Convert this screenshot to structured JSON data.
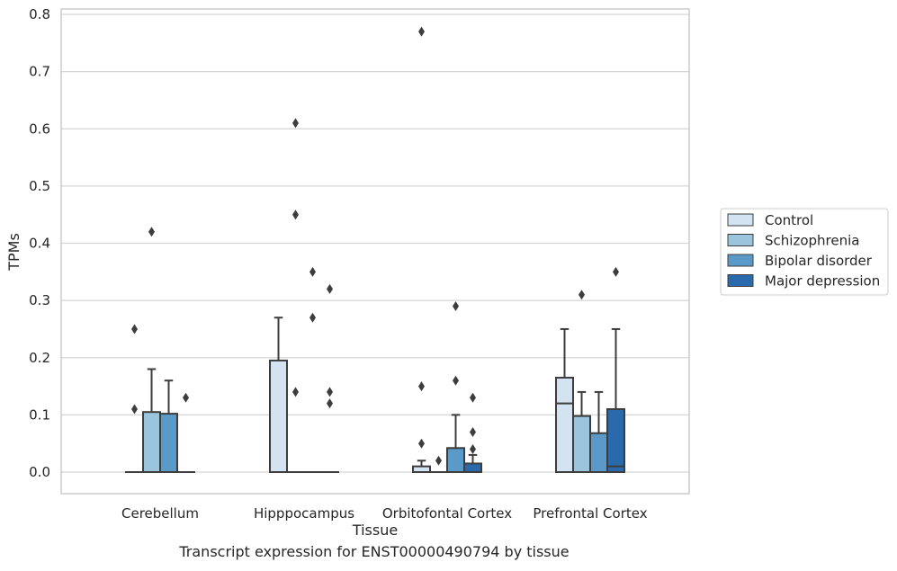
{
  "caption": "Transcript expression for ENST00000490794 by tissue",
  "chart_data": {
    "type": "box",
    "xlabel": "Tissue",
    "ylabel": "TPMs",
    "ylim": [
      -0.04,
      0.81
    ],
    "yticks": [
      "0.0",
      "0.1",
      "0.2",
      "0.3",
      "0.4",
      "0.5",
      "0.6",
      "0.7",
      "0.8"
    ],
    "grid": "horizontal",
    "legend_position": "right",
    "categories": [
      "Cerebellum",
      "Hipppocampus",
      "Orbitofontal Cortex",
      "Prefrontal Cortex"
    ],
    "series": [
      {
        "name": "Control",
        "color": "#d4e3f1",
        "boxes": [
          {
            "q1": 0,
            "median": 0,
            "q3": 0,
            "whisker_low": 0,
            "whisker_high": 0,
            "outliers": [
              0.11,
              0.25
            ]
          },
          {
            "q1": 0,
            "median": 0,
            "q3": 0.195,
            "whisker_low": 0,
            "whisker_high": 0.27,
            "outliers": []
          },
          {
            "q1": 0,
            "median": 0,
            "q3": 0.01,
            "whisker_low": 0,
            "whisker_high": 0.02,
            "outliers": [
              0.05,
              0.15,
              0.77
            ]
          },
          {
            "q1": 0,
            "median": 0.12,
            "q3": 0.165,
            "whisker_low": 0,
            "whisker_high": 0.25,
            "outliers": []
          }
        ]
      },
      {
        "name": "Schizophrenia",
        "color": "#9bc4dd",
        "boxes": [
          {
            "q1": 0,
            "median": 0,
            "q3": 0.105,
            "whisker_low": 0,
            "whisker_high": 0.18,
            "outliers": [
              0.42
            ]
          },
          {
            "q1": 0,
            "median": 0,
            "q3": 0,
            "whisker_low": 0,
            "whisker_high": 0,
            "outliers": [
              0.14,
              0.45,
              0.61
            ]
          },
          {
            "q1": 0,
            "median": 0,
            "q3": 0,
            "whisker_low": 0,
            "whisker_high": 0,
            "outliers": [
              0.02
            ]
          },
          {
            "q1": 0,
            "median": 0,
            "q3": 0.098,
            "whisker_low": 0,
            "whisker_high": 0.14,
            "outliers": [
              0.31
            ]
          }
        ]
      },
      {
        "name": "Bipolar disorder",
        "color": "#5a9ac8",
        "boxes": [
          {
            "q1": 0,
            "median": 0,
            "q3": 0.102,
            "whisker_low": 0,
            "whisker_high": 0.16,
            "outliers": []
          },
          {
            "q1": 0,
            "median": 0,
            "q3": 0,
            "whisker_low": 0,
            "whisker_high": 0,
            "outliers": [
              0.27,
              0.35
            ]
          },
          {
            "q1": 0,
            "median": 0,
            "q3": 0.042,
            "whisker_low": 0,
            "whisker_high": 0.1,
            "outliers": [
              0.16,
              0.29
            ]
          },
          {
            "q1": 0,
            "median": 0,
            "q3": 0.068,
            "whisker_low": 0,
            "whisker_high": 0.14,
            "outliers": []
          }
        ]
      },
      {
        "name": "Major depression",
        "color": "#2a6aac",
        "boxes": [
          {
            "q1": 0,
            "median": 0,
            "q3": 0,
            "whisker_low": 0,
            "whisker_high": 0,
            "outliers": [
              0.13
            ]
          },
          {
            "q1": 0,
            "median": 0,
            "q3": 0,
            "whisker_low": 0,
            "whisker_high": 0,
            "outliers": [
              0.12,
              0.14,
              0.32
            ]
          },
          {
            "q1": 0,
            "median": 0,
            "q3": 0.015,
            "whisker_low": 0,
            "whisker_high": 0.03,
            "outliers": [
              0.04,
              0.07,
              0.13
            ]
          },
          {
            "q1": 0,
            "median": 0.01,
            "q3": 0.11,
            "whisker_low": 0,
            "whisker_high": 0.25,
            "outliers": [
              0.35
            ]
          }
        ]
      }
    ]
  }
}
